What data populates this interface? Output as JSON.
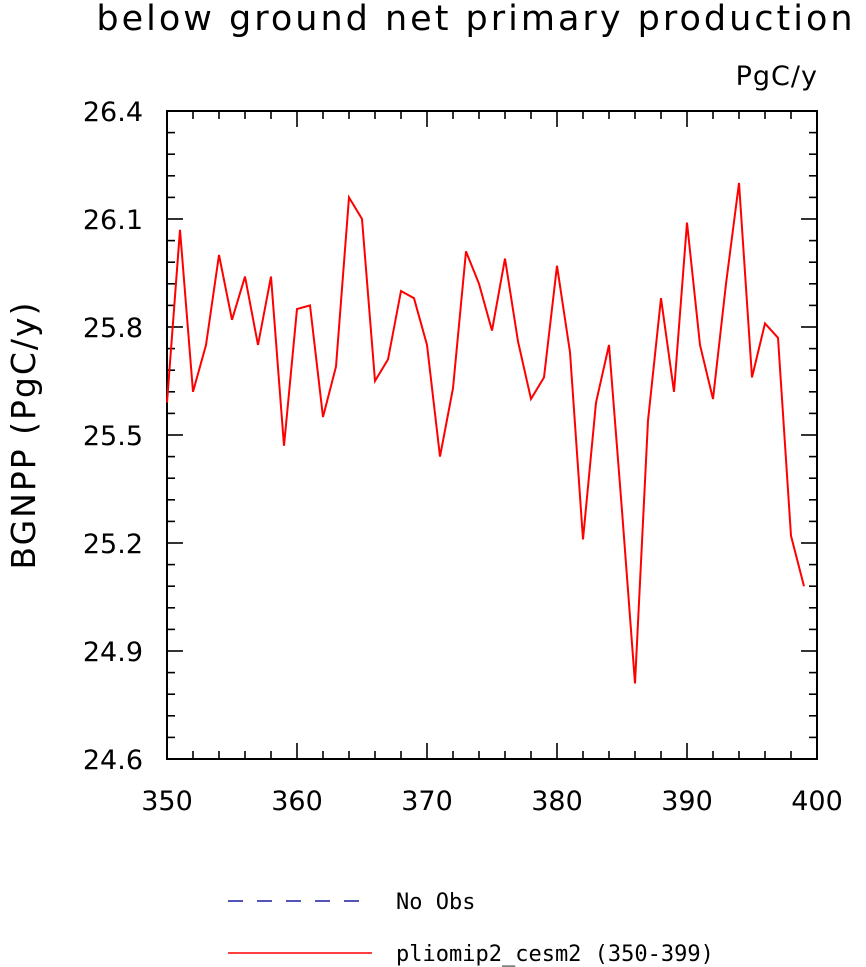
{
  "chart_data": {
    "type": "line",
    "title": "below ground net primary production",
    "units": "PgC/y",
    "ylabel": "BGNPP  (PgC/y)",
    "xlim": [
      350,
      400
    ],
    "ylim": [
      24.6,
      26.4
    ],
    "x_ticks": [
      "350",
      "360",
      "370",
      "380",
      "390",
      "400"
    ],
    "y_ticks": [
      "24.6",
      "24.9",
      "25.2",
      "25.5",
      "25.8",
      "26.1",
      "26.4"
    ],
    "series": [
      {
        "name": "pliomip2_cesm2 (350-399)",
        "color": "#ff0000",
        "style": "solid",
        "x": [
          350,
          351,
          352,
          353,
          354,
          355,
          356,
          357,
          358,
          359,
          360,
          361,
          362,
          363,
          364,
          365,
          366,
          367,
          368,
          369,
          370,
          371,
          372,
          373,
          374,
          375,
          376,
          377,
          378,
          379,
          380,
          381,
          382,
          383,
          384,
          385,
          386,
          387,
          388,
          389,
          390,
          391,
          392,
          393,
          394,
          395,
          396,
          397,
          398,
          399
        ],
        "values": [
          25.59,
          26.07,
          25.62,
          25.75,
          26.0,
          25.82,
          25.94,
          25.75,
          25.94,
          25.47,
          25.85,
          25.86,
          25.55,
          25.69,
          26.16,
          26.1,
          25.65,
          25.71,
          25.9,
          25.88,
          25.75,
          25.44,
          25.63,
          26.01,
          25.92,
          25.79,
          25.99,
          25.76,
          25.6,
          25.66,
          25.97,
          25.73,
          25.21,
          25.59,
          25.75,
          25.29,
          24.81,
          25.54,
          25.88,
          25.62,
          26.09,
          25.75,
          25.6,
          25.92,
          26.2,
          25.66,
          25.81,
          25.77,
          25.22,
          25.08
        ]
      }
    ],
    "legend": [
      {
        "label": "No Obs",
        "color": "#1a1aa0",
        "style": "dashed"
      },
      {
        "label": "pliomip2_cesm2 (350-399)",
        "color": "#ff0000",
        "style": "solid"
      }
    ]
  }
}
